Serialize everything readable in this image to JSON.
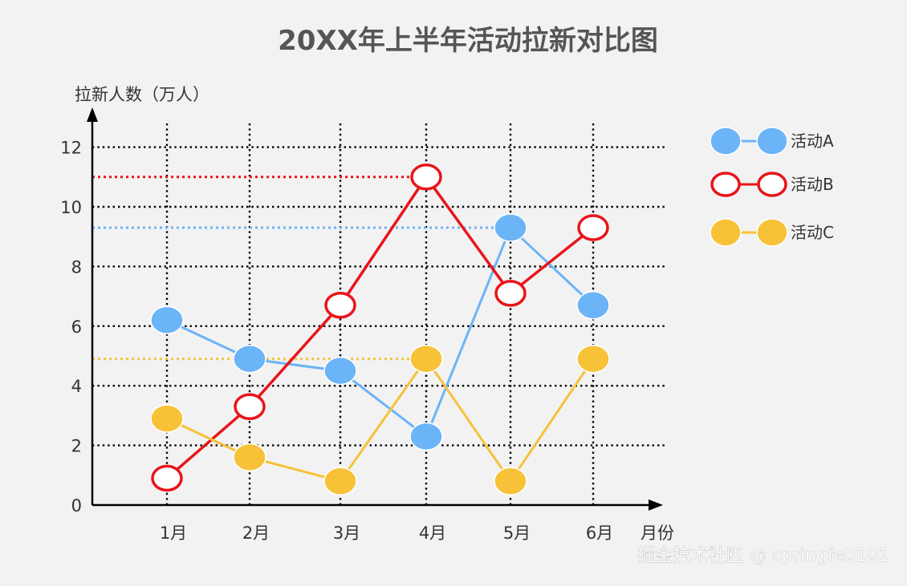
{
  "chart_data": {
    "type": "line",
    "title": "20XX年上半年活动拉新对比图",
    "ylabel": "拉新人数（万人）",
    "xlabel": "月份",
    "categories": [
      "1月",
      "2月",
      "3月",
      "4月",
      "5月",
      "6月"
    ],
    "y_ticks": [
      "0",
      "2",
      "4",
      "6",
      "8",
      "10",
      "12"
    ],
    "ylim": [
      0,
      13
    ],
    "grid": true,
    "grid_style": "dotted",
    "legend_position": "right",
    "series": [
      {
        "name": "活动A",
        "color": "#6cb4f8",
        "marker": "filled",
        "values": [
          6.2,
          4.9,
          4.5,
          2.3,
          9.3,
          6.7
        ],
        "max_reference": 9.3
      },
      {
        "name": "活动B",
        "color": "#e8151b",
        "marker": "hollow",
        "values": [
          0.9,
          3.3,
          6.7,
          11.0,
          7.1,
          9.3
        ],
        "max_reference": 11.0
      },
      {
        "name": "活动C",
        "color": "#f7c238",
        "marker": "filled",
        "values": [
          2.9,
          1.6,
          0.8,
          4.9,
          0.8,
          4.9
        ],
        "max_reference": 4.9
      }
    ]
  },
  "watermark": "掘金技术社区 @ springfe0101"
}
